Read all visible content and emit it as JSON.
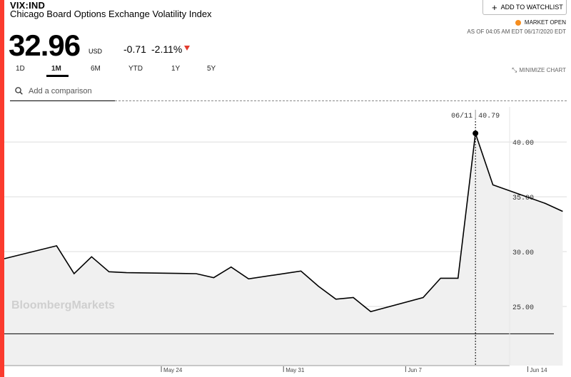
{
  "header": {
    "ticker": "VIX:IND",
    "name": "Chicago Board Options Exchange Volatility Index",
    "price": "32.96",
    "currency": "USD",
    "change": "-0.71",
    "change_pct": "-2.11%",
    "change_color": "#e23b2e",
    "accent_color": "#fb3b2e"
  },
  "actions": {
    "watchlist_label": "ADD TO WATCHLIST",
    "minimize_label": "MINIMIZE CHART"
  },
  "status": {
    "market": "MARKET OPEN",
    "market_dot_color": "#f68d1e",
    "as_of": "AS OF 04:05 AM EDT 06/17/2020 EDT"
  },
  "tabs": [
    {
      "label": "1D",
      "active": false
    },
    {
      "label": "1M",
      "active": true
    },
    {
      "label": "6M",
      "active": false
    },
    {
      "label": "YTD",
      "active": false
    },
    {
      "label": "1Y",
      "active": false
    },
    {
      "label": "5Y",
      "active": false
    }
  ],
  "search": {
    "placeholder": "Add a comparison",
    "icon": "search-icon"
  },
  "chart": {
    "watermark": "BloombergMarkets",
    "crosshair": {
      "date": "06/11",
      "value": "40.79"
    }
  },
  "chart_data": {
    "type": "line",
    "y_ticks": [
      "40.00",
      "35.00",
      "30.00",
      "25.00"
    ],
    "x_ticks": [
      "May 24",
      "May 31",
      "Jun 7",
      "Jun 14"
    ],
    "ylim": [
      19.6,
      43.2
    ],
    "series": [
      {
        "x": [
          "May 15",
          "May 18",
          "May 19",
          "May 20",
          "May 21",
          "May 22",
          "May 26",
          "May 27",
          "May 28",
          "May 29",
          "Jun 1",
          "Jun 2",
          "Jun 3",
          "Jun 4",
          "Jun 5",
          "Jun 8",
          "Jun 9",
          "Jun 10",
          "Jun 11",
          "Jun 12",
          "Jun 15",
          "Jun 16"
        ],
        "values": [
          29.35,
          30.53,
          27.99,
          29.53,
          28.16,
          28.08,
          27.99,
          27.62,
          28.59,
          27.51,
          28.23,
          26.84,
          25.66,
          25.81,
          24.52,
          25.81,
          27.57,
          27.57,
          40.79,
          36.09,
          34.4,
          33.67
        ]
      }
    ],
    "reference_line": 22.5,
    "grid": true,
    "colors": {
      "line": "#000000",
      "fill": "#f0f0f0",
      "grid": "#dddddd"
    }
  }
}
